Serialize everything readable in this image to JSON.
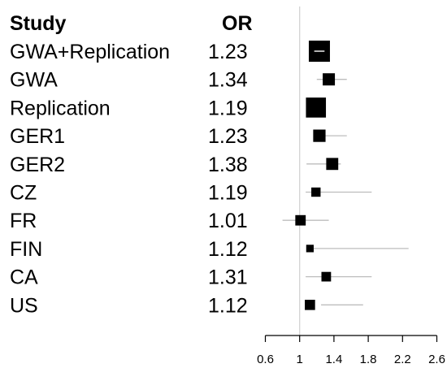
{
  "chart_data": {
    "type": "forest",
    "columns": {
      "study_header": "Study",
      "or_header": "OR"
    },
    "rows": [
      {
        "study": "GWA+Replication",
        "or": 1.23,
        "or_text": "1.23",
        "lo": 1.17,
        "hi": 1.29,
        "weight": 1.0
      },
      {
        "study": "GWA",
        "or": 1.34,
        "or_text": "1.34",
        "lo": 1.2,
        "hi": 1.55,
        "weight": 0.45
      },
      {
        "study": "Replication",
        "or": 1.19,
        "or_text": "1.19",
        "lo": 1.15,
        "hi": 1.26,
        "weight": 0.93
      },
      {
        "study": "GER1",
        "or": 1.23,
        "or_text": "1.23",
        "lo": 1.21,
        "hi": 1.55,
        "weight": 0.46
      },
      {
        "study": "GER2",
        "or": 1.38,
        "or_text": "1.38",
        "lo": 1.08,
        "hi": 1.48,
        "weight": 0.44
      },
      {
        "study": "CZ",
        "or": 1.19,
        "or_text": "1.19",
        "lo": 1.07,
        "hi": 1.84,
        "weight": 0.27
      },
      {
        "study": "FR",
        "or": 1.01,
        "or_text": "1.01",
        "lo": 0.8,
        "hi": 1.34,
        "weight": 0.34
      },
      {
        "study": "FIN",
        "or": 1.12,
        "or_text": "1.12",
        "lo": 1.15,
        "hi": 2.27,
        "weight": 0.16
      },
      {
        "study": "CA",
        "or": 1.31,
        "or_text": "1.31",
        "lo": 1.07,
        "hi": 1.84,
        "weight": 0.29
      },
      {
        "study": "US",
        "or": 1.12,
        "or_text": "1.12",
        "lo": 1.25,
        "hi": 1.74,
        "weight": 0.33
      }
    ],
    "x_axis": {
      "ticks": [
        0.6,
        1,
        1.4,
        1.8,
        2.2,
        2.6
      ],
      "tick_labels": [
        "0.6",
        "1",
        "1.4",
        "1.8",
        "2.2",
        "2.6"
      ],
      "range": [
        0.6,
        2.6
      ],
      "reference_line": 1
    },
    "colors": {
      "point": "#000000",
      "ci_line": "#bdbdbd",
      "reference_line": "#cfcfcf",
      "axis": "#000000",
      "summary_ci_line": "#ffffff"
    }
  }
}
